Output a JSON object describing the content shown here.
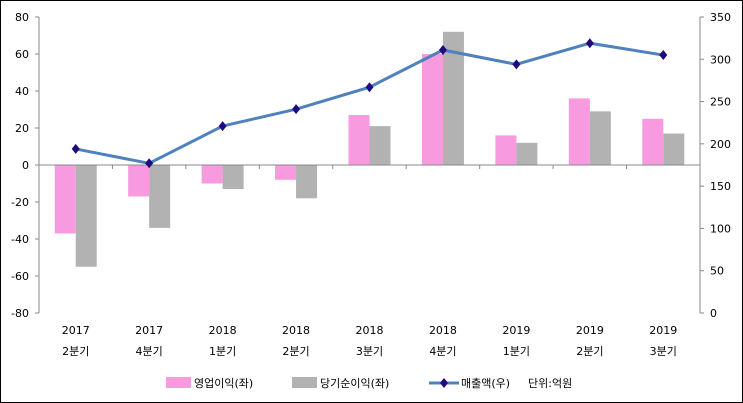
{
  "chart_data": {
    "type": "bar+line",
    "categories": [
      [
        "2017",
        "2분기"
      ],
      [
        "2017",
        "4분기"
      ],
      [
        "2018",
        "1분기"
      ],
      [
        "2018",
        "2분기"
      ],
      [
        "2018",
        "3분기"
      ],
      [
        "2018",
        "4분기"
      ],
      [
        "2019",
        "1분기"
      ],
      [
        "2019",
        "2분기"
      ],
      [
        "2019",
        "3분기"
      ]
    ],
    "left_axis": {
      "range": [
        -80,
        80
      ],
      "ticks": [
        "80",
        "60",
        "40",
        "20",
        "0",
        "-20",
        "-40",
        "-60",
        "-80"
      ]
    },
    "right_axis": {
      "range": [
        0,
        350
      ],
      "ticks": [
        "350",
        "300",
        "250",
        "200",
        "150",
        "100",
        "50",
        "0"
      ]
    },
    "series": [
      {
        "name": "영업이익(좌)",
        "type": "bar",
        "axis": "left",
        "color": "#F79ADF",
        "values": [
          -37,
          -17,
          -10,
          -8,
          27,
          60,
          16,
          36,
          25
        ]
      },
      {
        "name": "당기순이익(좌)",
        "type": "bar",
        "axis": "left",
        "color": "#B2B2B2",
        "values": [
          -55,
          -34,
          -13,
          -18,
          21,
          72,
          12,
          29,
          17
        ]
      },
      {
        "name": "매출액(우)",
        "type": "line",
        "axis": "right",
        "color": "#4F81BD",
        "marker_color": "#1F0A7F",
        "values": [
          194,
          177,
          221,
          241,
          267,
          311,
          294,
          319,
          305
        ]
      }
    ],
    "unit_note": "단위:억원",
    "legend_position": "bottom",
    "grid": false
  }
}
